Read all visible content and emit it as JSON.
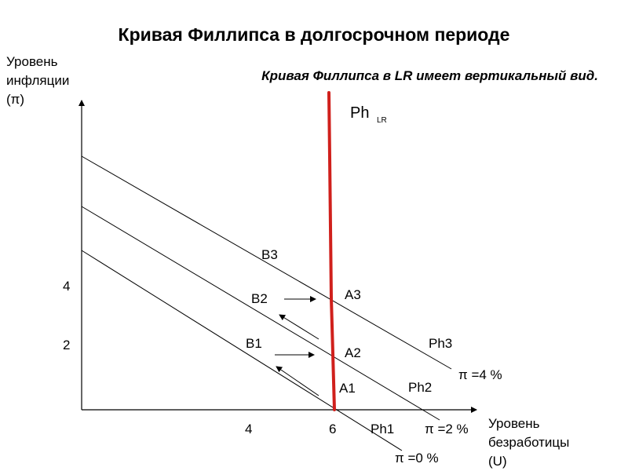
{
  "title": "Кривая Филлипса в долгосрочном периоде",
  "subtitle": "Кривая Филлипса в LR имеет вертикальный вид.",
  "y_axis": {
    "line1": "Уровень",
    "line2": "инфляции",
    "line3": "(π)"
  },
  "x_axis": {
    "line1": "Уровень",
    "line2": "безработицы",
    "line3": "(U)"
  },
  "y_ticks": [
    "4",
    "2"
  ],
  "x_ticks": [
    "4",
    "6"
  ],
  "long_run": {
    "name": "Ph",
    "subscript": "LR",
    "color": "#d0201c"
  },
  "curves": [
    {
      "name": "Ph1",
      "expectation": "π =0 %"
    },
    {
      "name": "Ph2",
      "expectation": "π =2 %"
    },
    {
      "name": "Ph3",
      "expectation": "π =4 %"
    }
  ],
  "points": [
    "A1",
    "A2",
    "A3",
    "B1",
    "B2",
    "B3"
  ]
}
